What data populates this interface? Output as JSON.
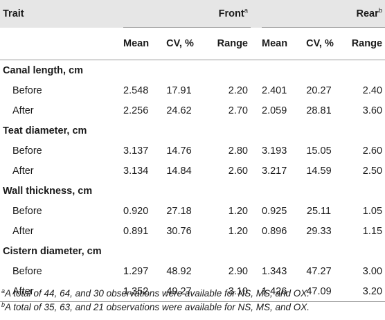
{
  "header": {
    "trait": "Trait",
    "groups": [
      {
        "label": "Front",
        "mark": "a"
      },
      {
        "label": "Rear",
        "mark": "b"
      }
    ],
    "sub": [
      "Mean",
      "CV, %",
      "Range"
    ]
  },
  "sections": [
    {
      "title": "Canal length, cm",
      "rows": [
        {
          "label": "Before",
          "values": [
            "2.548",
            "17.91",
            "2.20",
            "2.401",
            "20.27",
            "2.40"
          ]
        },
        {
          "label": "After",
          "values": [
            "2.256",
            "24.62",
            "2.70",
            "2.059",
            "28.81",
            "3.60"
          ]
        }
      ]
    },
    {
      "title": "Teat diameter, cm",
      "rows": [
        {
          "label": "Before",
          "values": [
            "3.137",
            "14.76",
            "2.80",
            "3.193",
            "15.05",
            "2.60"
          ]
        },
        {
          "label": "After",
          "values": [
            "3.134",
            "14.84",
            "2.60",
            "3.217",
            "14.59",
            "2.50"
          ]
        }
      ]
    },
    {
      "title": "Wall thickness, cm",
      "rows": [
        {
          "label": "Before",
          "values": [
            "0.920",
            "27.18",
            "1.20",
            "0.925",
            "25.11",
            "1.05"
          ]
        },
        {
          "label": "After",
          "values": [
            "0.891",
            "30.76",
            "1.20",
            "0.896",
            "29.33",
            "1.15"
          ]
        }
      ]
    },
    {
      "title": "Cistern diameter, cm",
      "rows": [
        {
          "label": "Before",
          "values": [
            "1.297",
            "48.92",
            "2.90",
            "1.343",
            "47.27",
            "3.00"
          ]
        },
        {
          "label": "After",
          "values": [
            "1.352",
            "49.27",
            "3.10",
            "1.426",
            "47.09",
            "3.20"
          ]
        }
      ]
    }
  ],
  "footnotes": [
    {
      "mark": "a",
      "text": "A total of 44, 64, and 30 observations were available for NS, MS, and OX."
    },
    {
      "mark": "b",
      "text": "A total of 35, 63, and 21 observations were available for NS, MS, and OX."
    }
  ]
}
